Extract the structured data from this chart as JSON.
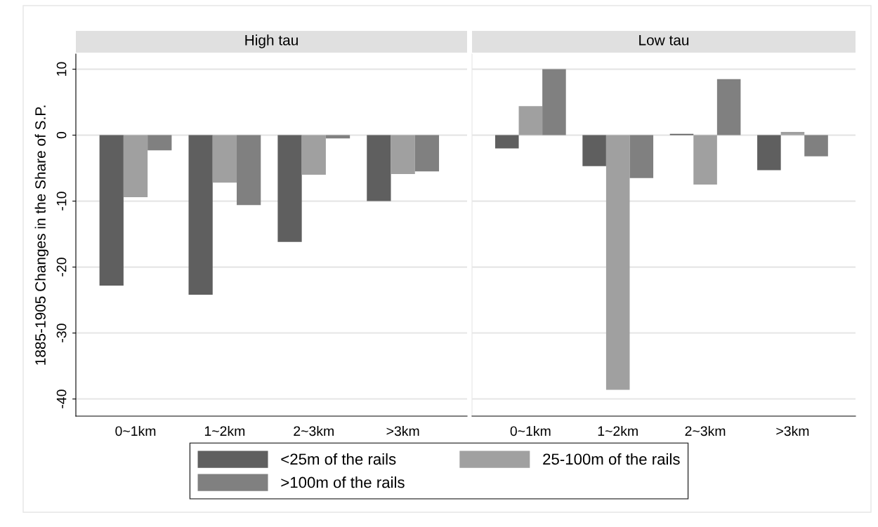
{
  "chart_data": [
    {
      "type": "bar",
      "title": "High tau",
      "ylabel": "1885-1905 Changes in the Share of S.P.",
      "categories": [
        "0~1km",
        "1~2km",
        "2~3km",
        ">3km"
      ],
      "series": [
        {
          "name": "<25m of the rails",
          "color": "#5f5f5f",
          "values": [
            -22.8,
            -24.2,
            -16.2,
            -10.0
          ]
        },
        {
          "name": "25-100m of the rails",
          "color": "#a0a0a0",
          "values": [
            -9.4,
            -7.2,
            -6.0,
            -5.9
          ]
        },
        {
          "name": ">100m of the rails",
          "color": "#808080",
          "values": [
            -2.3,
            -10.6,
            -0.5,
            -5.5
          ]
        }
      ],
      "ylim": [
        -42.6,
        12.3
      ],
      "yticks": [
        -40,
        -30,
        -20,
        -10,
        0,
        10
      ],
      "grid": "y",
      "legend": "bottom"
    },
    {
      "type": "bar",
      "title": "Low tau",
      "categories": [
        "0~1km",
        "1~2km",
        "2~3km",
        ">3km"
      ],
      "series": [
        {
          "color": "#5f5f5f",
          "values": [
            -2.0,
            -4.7,
            0.2,
            -5.3
          ]
        },
        {
          "color": "#a0a0a0",
          "values": [
            4.4,
            -38.6,
            -7.5,
            0.5
          ]
        },
        {
          "color": "#808080",
          "values": [
            10.0,
            -6.5,
            8.5,
            -3.2
          ]
        }
      ],
      "ylim": [
        -42.6,
        12.3
      ],
      "yticks": [
        -40,
        -30,
        -20,
        -10,
        0,
        10
      ],
      "grid": "y",
      "tick_labels": "x"
    }
  ]
}
